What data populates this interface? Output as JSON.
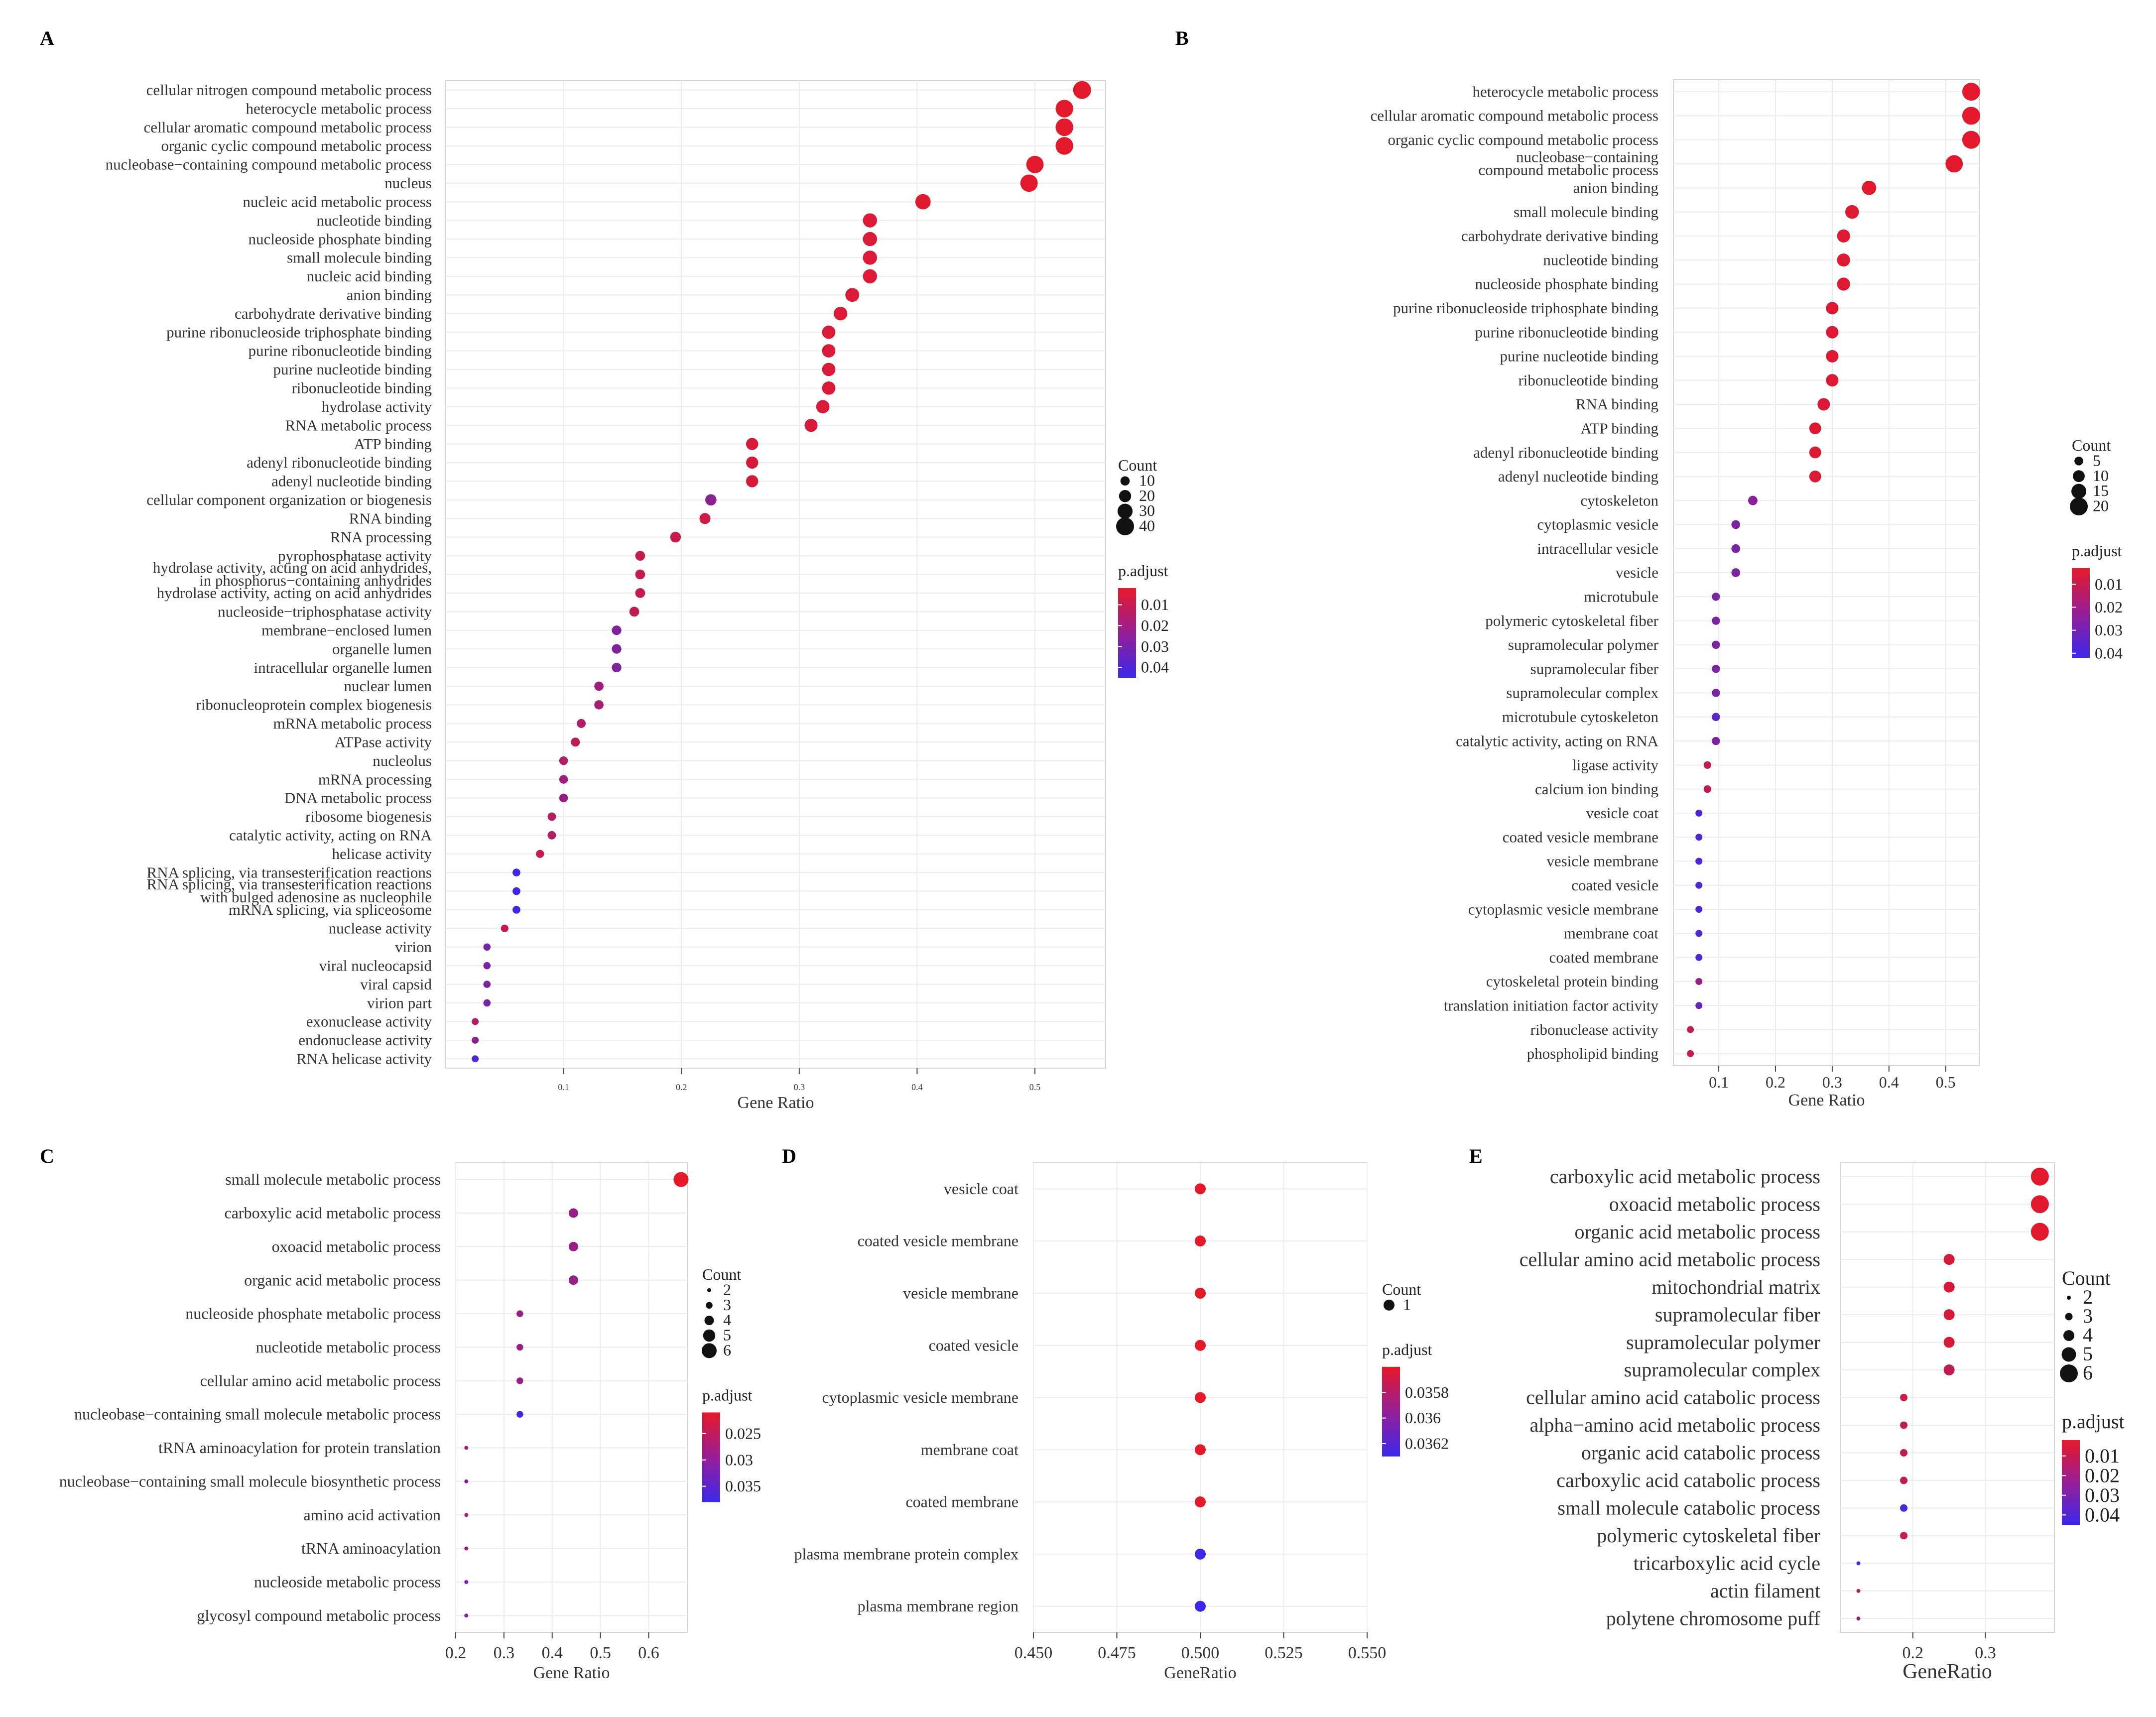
{
  "chart_data": [
    {
      "panel": "A",
      "type": "scatter",
      "xlabel": "Gene Ratio",
      "xlim": [
        0,
        0.56
      ],
      "xticks": [
        0.1,
        0.2,
        0.3,
        0.4,
        0.5
      ],
      "categories": [
        "cellular nitrogen compound metabolic process",
        "heterocycle metabolic process",
        "cellular aromatic compound metabolic process",
        "organic cyclic compound metabolic process",
        "nucleobase−containing compound metabolic process",
        "nucleus",
        "nucleic acid metabolic process",
        "nucleotide binding",
        "nucleoside phosphate binding",
        "small molecule binding",
        "nucleic acid binding",
        "anion binding",
        "carbohydrate derivative binding",
        "purine ribonucleoside triphosphate binding",
        "purine ribonucleotide binding",
        "purine nucleotide binding",
        "ribonucleotide binding",
        "hydrolase activity",
        "RNA metabolic process",
        "ATP binding",
        "adenyl ribonucleotide binding",
        "adenyl nucleotide binding",
        "cellular component organization or biogenesis",
        "RNA binding",
        "RNA processing",
        "pyrophosphatase activity",
        "hydrolase activity, acting on acid anhydrides, in phosphorus−containing anhydrides",
        "hydrolase activity, acting on acid anhydrides",
        "nucleoside−triphosphatase activity",
        "membrane−enclosed lumen",
        "organelle lumen",
        "intracellular organelle lumen",
        "nuclear lumen",
        "ribonucleoprotein complex biogenesis",
        "mRNA metabolic process",
        "ATPase activity",
        "nucleolus",
        "mRNA processing",
        "DNA metabolic process",
        "ribosome biogenesis",
        "catalytic activity, acting on RNA",
        "helicase activity",
        "RNA splicing, via transesterification reactions",
        "RNA splicing, via transesterification reactions with bulged adenosine as nucleophile",
        "mRNA splicing, via spliceosome",
        "nuclease activity",
        "virion",
        "viral nucleocapsid",
        "viral capsid",
        "virion part",
        "exonuclease activity",
        "endonuclease activity",
        "RNA helicase activity"
      ],
      "values": [
        0.54,
        0.525,
        0.525,
        0.525,
        0.5,
        0.495,
        0.405,
        0.36,
        0.36,
        0.36,
        0.36,
        0.345,
        0.335,
        0.325,
        0.325,
        0.325,
        0.325,
        0.32,
        0.31,
        0.26,
        0.26,
        0.26,
        0.225,
        0.22,
        0.195,
        0.165,
        0.165,
        0.165,
        0.16,
        0.145,
        0.145,
        0.145,
        0.13,
        0.13,
        0.115,
        0.11,
        0.1,
        0.1,
        0.1,
        0.09,
        0.09,
        0.08,
        0.06,
        0.06,
        0.06,
        0.05,
        0.035,
        0.035,
        0.035,
        0.035,
        0.025,
        0.025,
        0.025
      ],
      "count": [
        40,
        39,
        39,
        39,
        38,
        38,
        31,
        27,
        27,
        27,
        27,
        26,
        25,
        24,
        24,
        24,
        24,
        24,
        23,
        20,
        20,
        20,
        17,
        16,
        15,
        12,
        12,
        12,
        12,
        11,
        11,
        11,
        10,
        10,
        9,
        9,
        8,
        8,
        8,
        7,
        7,
        6,
        5,
        5,
        5,
        4,
        3,
        3,
        3,
        3,
        2,
        2,
        2
      ],
      "padjust": [
        0.003,
        0.003,
        0.003,
        0.003,
        0.003,
        0.003,
        0.004,
        0.005,
        0.005,
        0.005,
        0.005,
        0.005,
        0.005,
        0.005,
        0.005,
        0.005,
        0.005,
        0.005,
        0.006,
        0.006,
        0.006,
        0.006,
        0.025,
        0.008,
        0.01,
        0.01,
        0.01,
        0.01,
        0.012,
        0.028,
        0.028,
        0.028,
        0.02,
        0.018,
        0.016,
        0.012,
        0.016,
        0.02,
        0.022,
        0.015,
        0.015,
        0.01,
        0.045,
        0.045,
        0.045,
        0.01,
        0.03,
        0.03,
        0.03,
        0.03,
        0.015,
        0.025,
        0.04
      ],
      "legend": {
        "count_title": "Count",
        "count_values": [
          10,
          20,
          30,
          40
        ],
        "padj_title": "p.adjust",
        "padj_ticks": [
          0.01,
          0.02,
          0.03,
          0.04
        ],
        "padj_range": [
          0.002,
          0.045
        ]
      }
    },
    {
      "panel": "B",
      "type": "scatter",
      "xlabel": "Gene Ratio",
      "xlim": [
        0.02,
        0.56
      ],
      "xticks": [
        0.1,
        0.2,
        0.3,
        0.4,
        0.5
      ],
      "categories": [
        "heterocycle metabolic process",
        "cellular aromatic compound metabolic process",
        "organic cyclic compound metabolic process",
        "nucleobase−containing compound metabolic process",
        "anion binding",
        "small molecule binding",
        "carbohydrate derivative binding",
        "nucleotide binding",
        "nucleoside phosphate binding",
        "purine ribonucleoside triphosphate binding",
        "purine ribonucleotide binding",
        "purine nucleotide binding",
        "ribonucleotide binding",
        "RNA binding",
        "ATP binding",
        "adenyl ribonucleotide binding",
        "adenyl nucleotide binding",
        "cytoskeleton",
        "cytoplasmic vesicle",
        "intracellular vesicle",
        "vesicle",
        "microtubule",
        "polymeric cytoskeletal fiber",
        "supramolecular polymer",
        "supramolecular fiber",
        "supramolecular complex",
        "microtubule cytoskeleton",
        "catalytic activity, acting on RNA",
        "ligase activity",
        "calcium ion binding",
        "vesicle coat",
        "coated vesicle membrane",
        "vesicle membrane",
        "coated vesicle",
        "cytoplasmic vesicle membrane",
        "membrane coat",
        "coated membrane",
        "cytoskeletal protein binding",
        "translation initiation factor activity",
        "ribonuclease activity",
        "phospholipid binding"
      ],
      "values": [
        0.545,
        0.545,
        0.545,
        0.515,
        0.365,
        0.335,
        0.32,
        0.32,
        0.32,
        0.3,
        0.3,
        0.3,
        0.3,
        0.285,
        0.27,
        0.27,
        0.27,
        0.16,
        0.13,
        0.13,
        0.13,
        0.095,
        0.095,
        0.095,
        0.095,
        0.095,
        0.095,
        0.095,
        0.08,
        0.08,
        0.065,
        0.065,
        0.065,
        0.065,
        0.065,
        0.065,
        0.065,
        0.065,
        0.065,
        0.05,
        0.05
      ],
      "count": [
        20,
        20,
        20,
        19,
        14,
        13,
        12,
        12,
        12,
        11,
        11,
        11,
        11,
        11,
        10,
        10,
        10,
        6,
        5,
        5,
        5,
        4,
        4,
        4,
        4,
        4,
        4,
        4,
        3,
        3,
        2,
        2,
        2,
        2,
        2,
        2,
        2,
        2,
        2,
        2,
        2
      ],
      "padjust": [
        0.004,
        0.004,
        0.004,
        0.004,
        0.004,
        0.005,
        0.005,
        0.005,
        0.005,
        0.005,
        0.005,
        0.005,
        0.005,
        0.006,
        0.005,
        0.005,
        0.005,
        0.025,
        0.028,
        0.028,
        0.028,
        0.028,
        0.028,
        0.028,
        0.028,
        0.028,
        0.035,
        0.028,
        0.012,
        0.012,
        0.038,
        0.038,
        0.038,
        0.038,
        0.038,
        0.038,
        0.038,
        0.022,
        0.032,
        0.01,
        0.01
      ],
      "legend": {
        "count_title": "Count",
        "count_values": [
          5,
          10,
          15,
          20
        ],
        "padj_title": "p.adjust",
        "padj_ticks": [
          0.01,
          0.02,
          0.03,
          0.04
        ],
        "padj_range": [
          0.003,
          0.042
        ]
      }
    },
    {
      "panel": "C",
      "type": "scatter",
      "xlabel": "Gene Ratio",
      "xlim": [
        0.2,
        0.68
      ],
      "xticks": [
        0.2,
        0.3,
        0.4,
        0.5,
        0.6
      ],
      "categories": [
        "small molecule metabolic process",
        "carboxylic acid metabolic process",
        "oxoacid metabolic process",
        "organic acid metabolic process",
        "nucleoside phosphate metabolic process",
        "nucleotide metabolic process",
        "cellular amino acid metabolic process",
        "nucleobase−containing small molecule metabolic process",
        "tRNA aminoacylation for protein translation",
        "nucleobase−containing small molecule biosynthetic process",
        "amino acid activation",
        "tRNA aminoacylation",
        "nucleoside metabolic process",
        "glycosyl compound metabolic process"
      ],
      "values": [
        0.667,
        0.444,
        0.444,
        0.444,
        0.333,
        0.333,
        0.333,
        0.333,
        0.222,
        0.222,
        0.222,
        0.222,
        0.222,
        0.222
      ],
      "count": [
        6,
        4,
        4,
        4,
        3,
        3,
        3,
        3,
        2,
        2,
        2,
        2,
        2,
        2
      ],
      "padjust": [
        0.021,
        0.029,
        0.029,
        0.029,
        0.029,
        0.029,
        0.029,
        0.037,
        0.028,
        0.031,
        0.028,
        0.028,
        0.032,
        0.032
      ],
      "legend": {
        "count_title": "Count",
        "count_values": [
          2,
          3,
          4,
          5,
          6
        ],
        "padj_title": "p.adjust",
        "padj_ticks": [
          0.025,
          0.03,
          0.035
        ],
        "padj_range": [
          0.021,
          0.038
        ]
      }
    },
    {
      "panel": "D",
      "type": "scatter",
      "xlabel": "GeneRatio",
      "xlim": [
        0.45,
        0.55
      ],
      "xticks": [
        0.45,
        0.475,
        0.5,
        0.525,
        0.55
      ],
      "categories": [
        "vesicle coat",
        "coated vesicle membrane",
        "vesicle membrane",
        "coated vesicle",
        "cytoplasmic vesicle membrane",
        "membrane coat",
        "coated membrane",
        "plasma membrane protein complex",
        "plasma membrane region"
      ],
      "values": [
        0.5,
        0.5,
        0.5,
        0.5,
        0.5,
        0.5,
        0.5,
        0.5,
        0.5
      ],
      "count": [
        1,
        1,
        1,
        1,
        1,
        1,
        1,
        1,
        1
      ],
      "padjust": [
        0.0356,
        0.0356,
        0.0356,
        0.0356,
        0.0356,
        0.0356,
        0.0356,
        0.0363,
        0.0363
      ],
      "legend": {
        "count_title": "Count",
        "count_values": [
          1
        ],
        "padj_title": "p.adjust",
        "padj_ticks": [
          0.0358,
          0.036,
          0.0362
        ],
        "padj_range": [
          0.0356,
          0.0363
        ]
      }
    },
    {
      "panel": "E",
      "type": "scatter",
      "xlabel": "GeneRatio",
      "xlim": [
        0.1,
        0.395
      ],
      "xticks": [
        0.2,
        0.3
      ],
      "categories": [
        "carboxylic acid metabolic process",
        "oxoacid metabolic process",
        "organic acid metabolic process",
        "cellular amino acid metabolic process",
        "mitochondrial matrix",
        "supramolecular fiber",
        "supramolecular polymer",
        "supramolecular complex",
        "cellular amino acid catabolic process",
        "alpha−amino acid metabolic process",
        "organic acid catabolic process",
        "carboxylic acid catabolic process",
        "small molecule catabolic process",
        "polymeric cytoskeletal fiber",
        "tricarboxylic acid cycle",
        "actin filament",
        "polytene chromosome puff"
      ],
      "values": [
        0.375,
        0.375,
        0.375,
        0.25,
        0.25,
        0.25,
        0.25,
        0.25,
        0.1875,
        0.1875,
        0.1875,
        0.1875,
        0.1875,
        0.1875,
        0.125,
        0.125,
        0.125
      ],
      "count": [
        6,
        6,
        6,
        4,
        4,
        4,
        4,
        4,
        3,
        3,
        3,
        3,
        3,
        3,
        2,
        2,
        2
      ],
      "padjust": [
        0.003,
        0.003,
        0.003,
        0.006,
        0.006,
        0.006,
        0.006,
        0.012,
        0.008,
        0.012,
        0.012,
        0.012,
        0.042,
        0.008,
        0.042,
        0.012,
        0.018
      ],
      "legend": {
        "count_title": "Count",
        "count_values": [
          2,
          3,
          4,
          5,
          6
        ],
        "padj_title": "p.adjust",
        "padj_ticks": [
          0.01,
          0.02,
          0.03,
          0.04
        ],
        "padj_range": [
          0.002,
          0.045
        ]
      }
    }
  ]
}
